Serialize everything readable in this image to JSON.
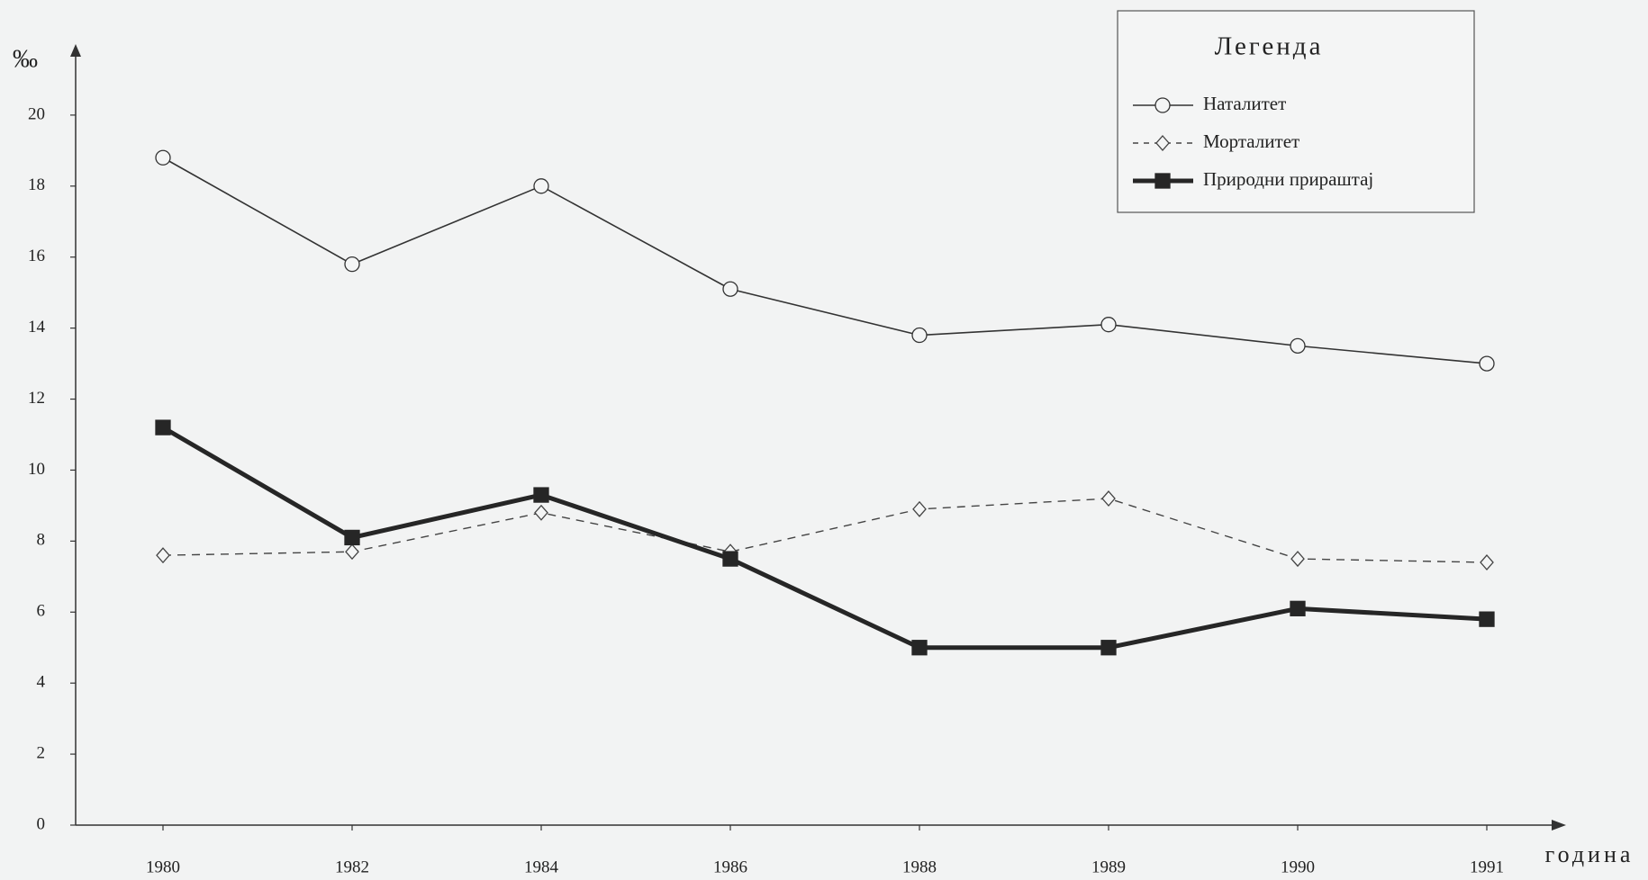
{
  "chart_data": {
    "type": "line",
    "y_label": "‰",
    "x_label": "година",
    "legend_title": "Легенда",
    "legend": "upper right",
    "categories": [
      "1980",
      "1982",
      "1984",
      "1986",
      "1988",
      "1989",
      "1990",
      "1991"
    ],
    "series": [
      {
        "name": "Наталитет",
        "color": "#333333",
        "line_style": "solid",
        "line_width": 1.6,
        "marker": "circle",
        "values": [
          18.8,
          15.8,
          18.0,
          15.1,
          13.8,
          14.1,
          13.5,
          13.0
        ]
      },
      {
        "name": "Морталитет",
        "color": "#444444",
        "line_style": "dashed",
        "line_width": 1.4,
        "marker": "diamond",
        "values": [
          7.6,
          7.7,
          8.8,
          7.7,
          8.9,
          9.2,
          7.5,
          7.4
        ]
      },
      {
        "name": "Природни прираштај",
        "color": "#262626",
        "line_style": "solid",
        "line_width": 5,
        "marker": "square",
        "values": [
          11.2,
          8.1,
          9.3,
          7.5,
          5.0,
          5.0,
          6.1,
          5.8
        ]
      }
    ],
    "ylim": [
      0,
      22
    ],
    "yticks": [
      0,
      2,
      4,
      6,
      8,
      10,
      12,
      14,
      16,
      18,
      20
    ],
    "grid": false
  }
}
